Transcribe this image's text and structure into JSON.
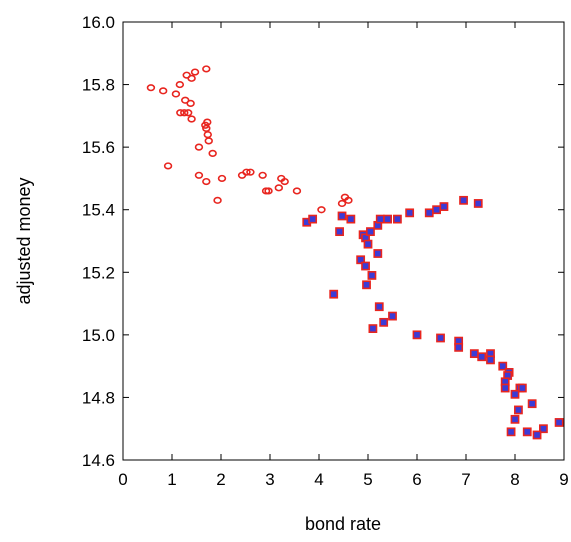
{
  "chart_data": {
    "type": "scatter",
    "title": "",
    "xlabel": "bond rate",
    "ylabel": "adjusted money",
    "xlim": [
      0,
      9
    ],
    "ylim": [
      14.6,
      16.0
    ],
    "xticks": [
      "0",
      "1",
      "2",
      "3",
      "4",
      "5",
      "6",
      "7",
      "8",
      "9"
    ],
    "yticks": [
      "14.6",
      "14.8",
      "15.0",
      "15.2",
      "15.4",
      "15.6",
      "15.8",
      "16.0"
    ],
    "grid": false,
    "series": [
      {
        "marker": "open-circle",
        "color": "#e8251f",
        "points": [
          [
            0.57,
            15.79
          ],
          [
            0.82,
            15.78
          ],
          [
            1.08,
            15.77
          ],
          [
            1.16,
            15.8
          ],
          [
            1.3,
            15.83
          ],
          [
            1.4,
            15.82
          ],
          [
            1.47,
            15.84
          ],
          [
            1.7,
            15.85
          ],
          [
            1.27,
            15.75
          ],
          [
            1.38,
            15.74
          ],
          [
            1.17,
            15.71
          ],
          [
            1.25,
            15.71
          ],
          [
            1.33,
            15.71
          ],
          [
            1.4,
            15.69
          ],
          [
            1.72,
            15.68
          ],
          [
            1.68,
            15.67
          ],
          [
            1.7,
            15.66
          ],
          [
            1.73,
            15.64
          ],
          [
            1.75,
            15.62
          ],
          [
            1.55,
            15.6
          ],
          [
            1.83,
            15.58
          ],
          [
            0.92,
            15.54
          ],
          [
            1.55,
            15.51
          ],
          [
            1.7,
            15.49
          ],
          [
            2.02,
            15.5
          ],
          [
            1.93,
            15.43
          ],
          [
            2.43,
            15.51
          ],
          [
            2.52,
            15.52
          ],
          [
            2.6,
            15.52
          ],
          [
            2.85,
            15.51
          ],
          [
            2.92,
            15.46
          ],
          [
            2.97,
            15.46
          ],
          [
            3.18,
            15.47
          ],
          [
            3.23,
            15.5
          ],
          [
            3.3,
            15.49
          ],
          [
            3.55,
            15.46
          ],
          [
            4.05,
            15.4
          ],
          [
            4.47,
            15.42
          ],
          [
            4.53,
            15.44
          ],
          [
            4.6,
            15.43
          ]
        ]
      },
      {
        "marker": "filled-square",
        "color": "#3b3bd6",
        "edge": "#e8251f",
        "points": [
          [
            3.75,
            15.36
          ],
          [
            3.87,
            15.37
          ],
          [
            4.42,
            15.33
          ],
          [
            4.47,
            15.38
          ],
          [
            4.65,
            15.37
          ],
          [
            4.9,
            15.32
          ],
          [
            4.95,
            15.31
          ],
          [
            5.05,
            15.33
          ],
          [
            5.0,
            15.29
          ],
          [
            5.2,
            15.35
          ],
          [
            5.25,
            15.37
          ],
          [
            5.4,
            15.37
          ],
          [
            5.6,
            15.37
          ],
          [
            5.85,
            15.39
          ],
          [
            6.25,
            15.39
          ],
          [
            6.4,
            15.4
          ],
          [
            6.55,
            15.41
          ],
          [
            6.95,
            15.43
          ],
          [
            7.25,
            15.42
          ],
          [
            5.2,
            15.26
          ],
          [
            4.85,
            15.24
          ],
          [
            4.95,
            15.22
          ],
          [
            5.08,
            15.19
          ],
          [
            4.97,
            15.16
          ],
          [
            4.3,
            15.13
          ],
          [
            5.23,
            15.09
          ],
          [
            5.32,
            15.04
          ],
          [
            5.5,
            15.06
          ],
          [
            5.1,
            15.02
          ],
          [
            6.0,
            15.0
          ],
          [
            6.48,
            14.99
          ],
          [
            6.85,
            14.98
          ],
          [
            6.85,
            14.96
          ],
          [
            7.17,
            14.94
          ],
          [
            7.32,
            14.93
          ],
          [
            7.5,
            14.94
          ],
          [
            7.5,
            14.92
          ],
          [
            7.75,
            14.9
          ],
          [
            7.88,
            14.88
          ],
          [
            7.85,
            14.87
          ],
          [
            7.8,
            14.85
          ],
          [
            7.8,
            14.83
          ],
          [
            8.1,
            14.83
          ],
          [
            8.15,
            14.83
          ],
          [
            8.0,
            14.81
          ],
          [
            8.35,
            14.78
          ],
          [
            8.07,
            14.76
          ],
          [
            8.0,
            14.73
          ],
          [
            8.58,
            14.7
          ],
          [
            8.9,
            14.72
          ],
          [
            7.92,
            14.69
          ],
          [
            8.25,
            14.69
          ],
          [
            8.45,
            14.68
          ]
        ]
      }
    ]
  }
}
